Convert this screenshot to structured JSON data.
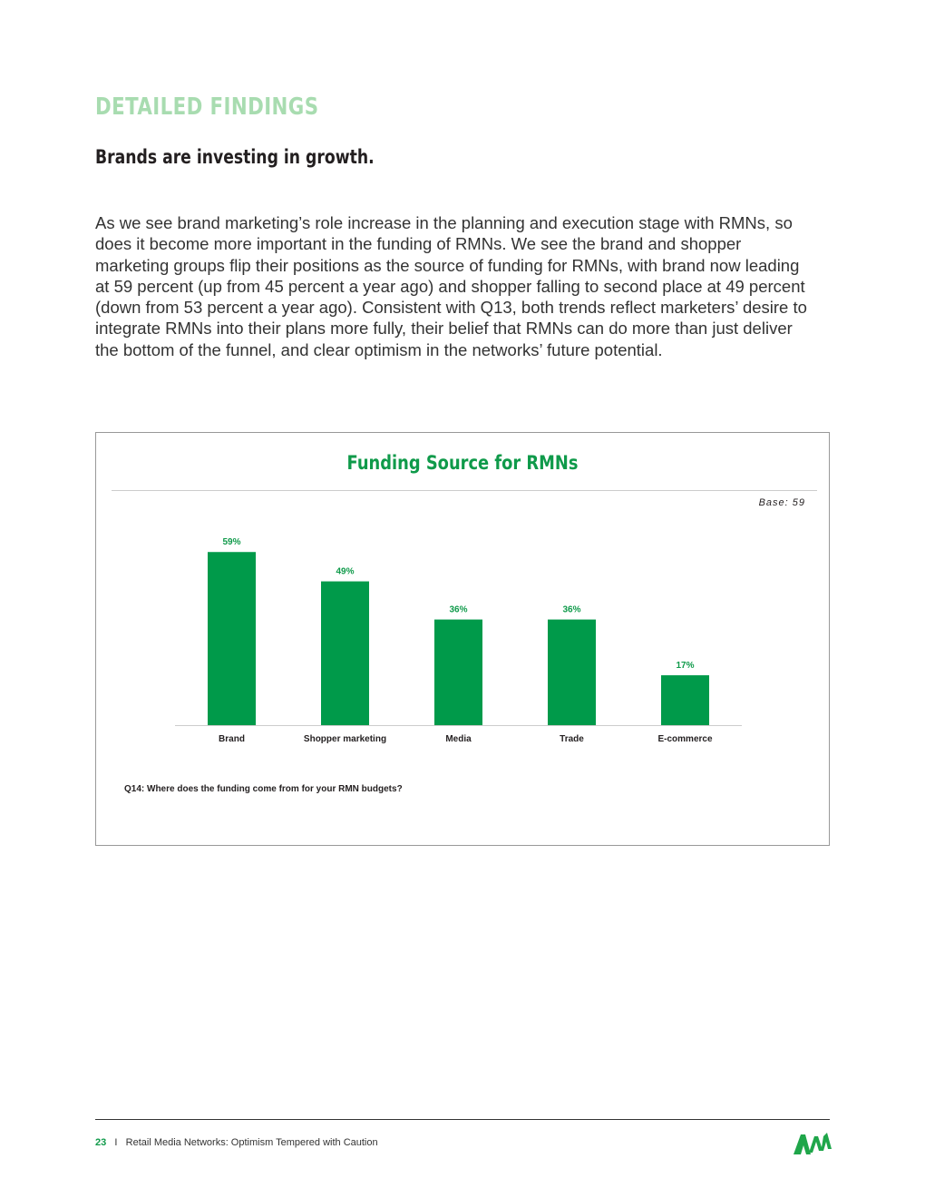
{
  "header": {
    "section": "DETAILED FINDINGS",
    "subtitle": "Brands are investing in growth."
  },
  "body": "As we see brand marketing’s role increase in the planning and execution stage with RMNs, so does it become more important in the funding of RMNs. We see the brand and shopper marketing groups flip their positions as the source of funding for RMNs, with brand now leading at 59 percent (up from 45 percent a year ago) and shopper falling to second place at 49 percent (down from 53 percent a year ago). Consistent with Q13, both trends reflect marketers’ desire to integrate RMNs into their plans more fully, their belief that RMNs can do more than just deliver the bottom of the funnel, and clear optimism in the networks’ future potential.",
  "chart_data": {
    "type": "bar",
    "title": "Funding Source for RMNs",
    "base": "Base: 59",
    "categories": [
      "Brand",
      "Shopper marketing",
      "Media",
      "Trade",
      "E-commerce"
    ],
    "values": [
      59,
      49,
      36,
      36,
      17
    ],
    "labels": [
      "59%",
      "49%",
      "36%",
      "36%",
      "17%"
    ],
    "ylim": [
      0,
      60
    ],
    "grid": false,
    "bar_color": "#009a4a",
    "note": "Q14: Where does the funding come from for your RMN budgets?"
  },
  "footer": {
    "page": "23",
    "separator": "I",
    "title": "Retail Media Networks: Optimism Tempered with Caution",
    "logo": "ANA"
  }
}
